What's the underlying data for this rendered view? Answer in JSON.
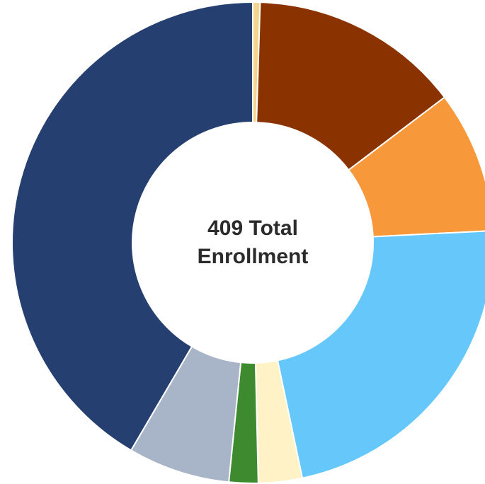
{
  "chart_data": {
    "type": "pie",
    "center_text": {
      "line1": "409 Total",
      "line2": "Enrollment"
    },
    "total": 409,
    "slices": [
      {
        "value": 2,
        "color": "#F2D58A"
      },
      {
        "value": 58,
        "color": "#8B3300"
      },
      {
        "value": 39,
        "color": "#F7983A"
      },
      {
        "value": 92,
        "color": "#66C8FA"
      },
      {
        "value": 12,
        "color": "#FFF2C6"
      },
      {
        "value": 8,
        "color": "#3E8B2F"
      },
      {
        "value": 28,
        "color": "#A8B4C7"
      },
      {
        "value": 170,
        "color": "#243F70"
      }
    ],
    "legend": null
  }
}
